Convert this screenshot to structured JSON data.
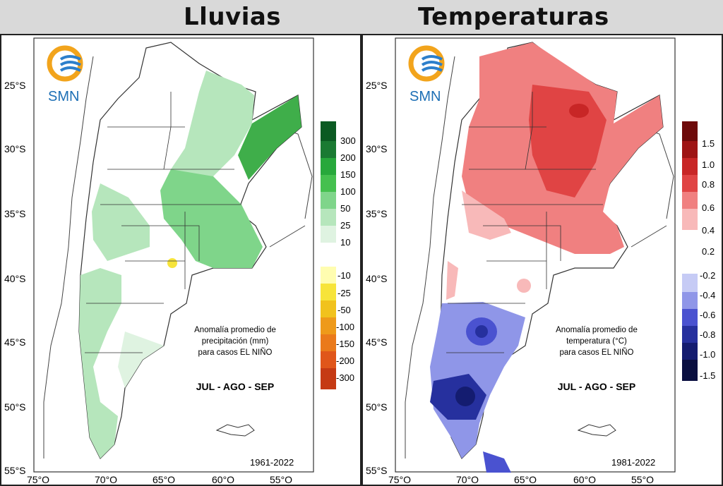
{
  "header": {
    "left_title": "Lluvias",
    "right_title": "Temperaturas"
  },
  "panels": [
    {
      "logo_text": "SMN",
      "lat_labels": [
        "25°S",
        "30°S",
        "35°S",
        "40°S",
        "45°S",
        "50°S",
        "55°S"
      ],
      "lon_labels": [
        "75°O",
        "70°O",
        "65°O",
        "60°O",
        "55°O"
      ],
      "caption": [
        "Anomalía promedio de",
        "precipitación (mm)",
        "para casos EL NIÑO"
      ],
      "season": "JUL - AGO - SEP",
      "period": "1961-2022",
      "legend": {
        "labels": [
          "300",
          "200",
          "150",
          "100",
          "50",
          "25",
          "10",
          "-10",
          "-25",
          "-50",
          "-100",
          "-150",
          "-200",
          "-300"
        ],
        "colors": [
          "#0b5a22",
          "#1a7a32",
          "#27a83b",
          "#45c04f",
          "#7fd58a",
          "#b6e6bc",
          "#dff3e1",
          "#fffdb0",
          "#f7e43a",
          "#f1c21d",
          "#ee9a1a",
          "#ea7a1b",
          "#e0561a",
          "#c53a14"
        ]
      }
    },
    {
      "logo_text": "SMN",
      "lat_labels": [
        "25°S",
        "30°S",
        "35°S",
        "40°S",
        "45°S",
        "50°S",
        "55°S"
      ],
      "lon_labels": [
        "75°O",
        "70°O",
        "65°O",
        "60°O",
        "55°O"
      ],
      "caption": [
        "Anomalía promedio de",
        "temperatura (°C)",
        "para casos EL NIÑO"
      ],
      "season": "JUL - AGO - SEP",
      "period": "1981-2022",
      "legend": {
        "labels": [
          "1.5",
          "1.0",
          "0.8",
          "0.6",
          "0.4",
          "0.2",
          "-0.2",
          "-0.4",
          "-0.6",
          "-0.8",
          "-1.0",
          "-1.5"
        ],
        "colors": [
          "#6e0a0a",
          "#9e1414",
          "#c82626",
          "#e04444",
          "#f08080",
          "#f8b9b9",
          "#c6cbf5",
          "#8f96e8",
          "#4a52d0",
          "#26309e",
          "#141c70",
          "#0a0f40"
        ]
      }
    }
  ]
}
